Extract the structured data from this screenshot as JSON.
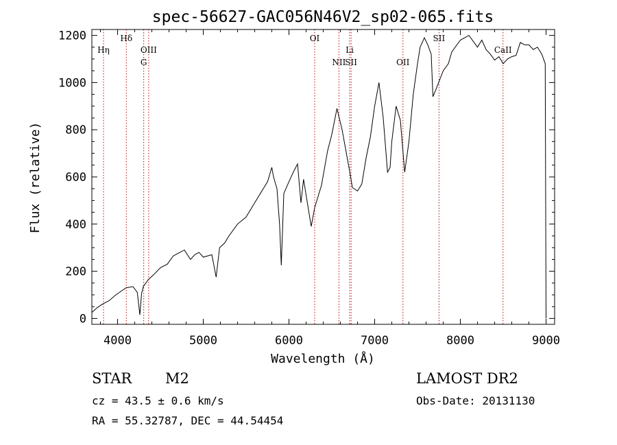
{
  "chart_data": {
    "type": "line",
    "title": "spec-56627-GAC056N46V2_sp02-065.fits",
    "xlabel": "Wavelength (Å)",
    "ylabel": "Flux (relative)",
    "xlim": [
      3700,
      9100
    ],
    "ylim": [
      -25,
      1225
    ],
    "xticks": [
      4000,
      5000,
      6000,
      7000,
      8000,
      9000
    ],
    "yticks": [
      0,
      200,
      400,
      600,
      800,
      1000,
      1200
    ],
    "line_color": "#000000",
    "marker_color": "#c00000",
    "series": [
      {
        "x": [
          3700,
          3760,
          3820,
          3900,
          3980,
          4060,
          4100,
          4180,
          4230,
          4260,
          4280,
          4300,
          4360,
          4420,
          4500,
          4580,
          4650,
          4700,
          4780,
          4850,
          4900,
          4950,
          5000,
          5100,
          5150,
          5190,
          5250,
          5300,
          5400,
          5500,
          5600,
          5700,
          5750,
          5800,
          5820,
          5860,
          5890,
          5910,
          5940,
          6000,
          6050,
          6100,
          6140,
          6170,
          6230,
          6260,
          6300,
          6380,
          6450,
          6500,
          6560,
          6620,
          6680,
          6710,
          6740,
          6800,
          6850,
          6900,
          6950,
          7000,
          7050,
          7100,
          7150,
          7180,
          7200,
          7250,
          7300,
          7350,
          7400,
          7450,
          7500,
          7530,
          7580,
          7620,
          7660,
          7680,
          7720,
          7800,
          7860,
          7900,
          8000,
          8100,
          8160,
          8200,
          8250,
          8300,
          8350,
          8400,
          8450,
          8500,
          8550,
          8600,
          8650,
          8700,
          8750,
          8800,
          8850,
          8900,
          8950,
          8990,
          9000
        ],
        "y": [
          25,
          45,
          60,
          75,
          100,
          120,
          130,
          135,
          110,
          15,
          105,
          135,
          165,
          185,
          215,
          230,
          265,
          275,
          290,
          250,
          270,
          280,
          260,
          270,
          175,
          300,
          320,
          350,
          400,
          430,
          490,
          550,
          580,
          640,
          600,
          550,
          400,
          225,
          530,
          580,
          620,
          655,
          490,
          590,
          455,
          390,
          470,
          565,
          710,
          780,
          890,
          800,
          680,
          620,
          555,
          540,
          570,
          680,
          770,
          900,
          1000,
          850,
          620,
          640,
          750,
          900,
          840,
          620,
          750,
          950,
          1080,
          1150,
          1190,
          1160,
          1120,
          940,
          975,
          1050,
          1080,
          1130,
          1180,
          1200,
          1170,
          1150,
          1180,
          1140,
          1120,
          1095,
          1110,
          1080,
          1100,
          1110,
          1115,
          1170,
          1160,
          1160,
          1140,
          1150,
          1120,
          1080,
          0
        ]
      }
    ],
    "lines": [
      {
        "label": "Hη",
        "x": 3836,
        "row": 1
      },
      {
        "label": "Hδ",
        "x": 4102,
        "row": 0
      },
      {
        "label": "OIII",
        "x": 4363,
        "row": 1
      },
      {
        "label": "G",
        "x": 4305,
        "row": 2
      },
      {
        "label": "OI",
        "x": 6300,
        "row": 0
      },
      {
        "label": "Li",
        "x": 6708,
        "row": 1
      },
      {
        "label": "NII",
        "x": 6583,
        "row": 2
      },
      {
        "label": "SII",
        "x": 6725,
        "row": 2
      },
      {
        "label": "OII",
        "x": 7330,
        "row": 2
      },
      {
        "label": "SII",
        "x": 7751,
        "row": 0
      },
      {
        "label": "CaII",
        "x": 8498,
        "row": 1
      }
    ]
  },
  "footer": {
    "object": "STAR",
    "subclass": "M2",
    "survey": "LAMOST DR2",
    "cz": "cz = 43.5 ± 0.6 km/s",
    "obs_date": "Obs-Date: 20131130",
    "radec": "RA =  55.32787, DEC =  44.54454"
  }
}
